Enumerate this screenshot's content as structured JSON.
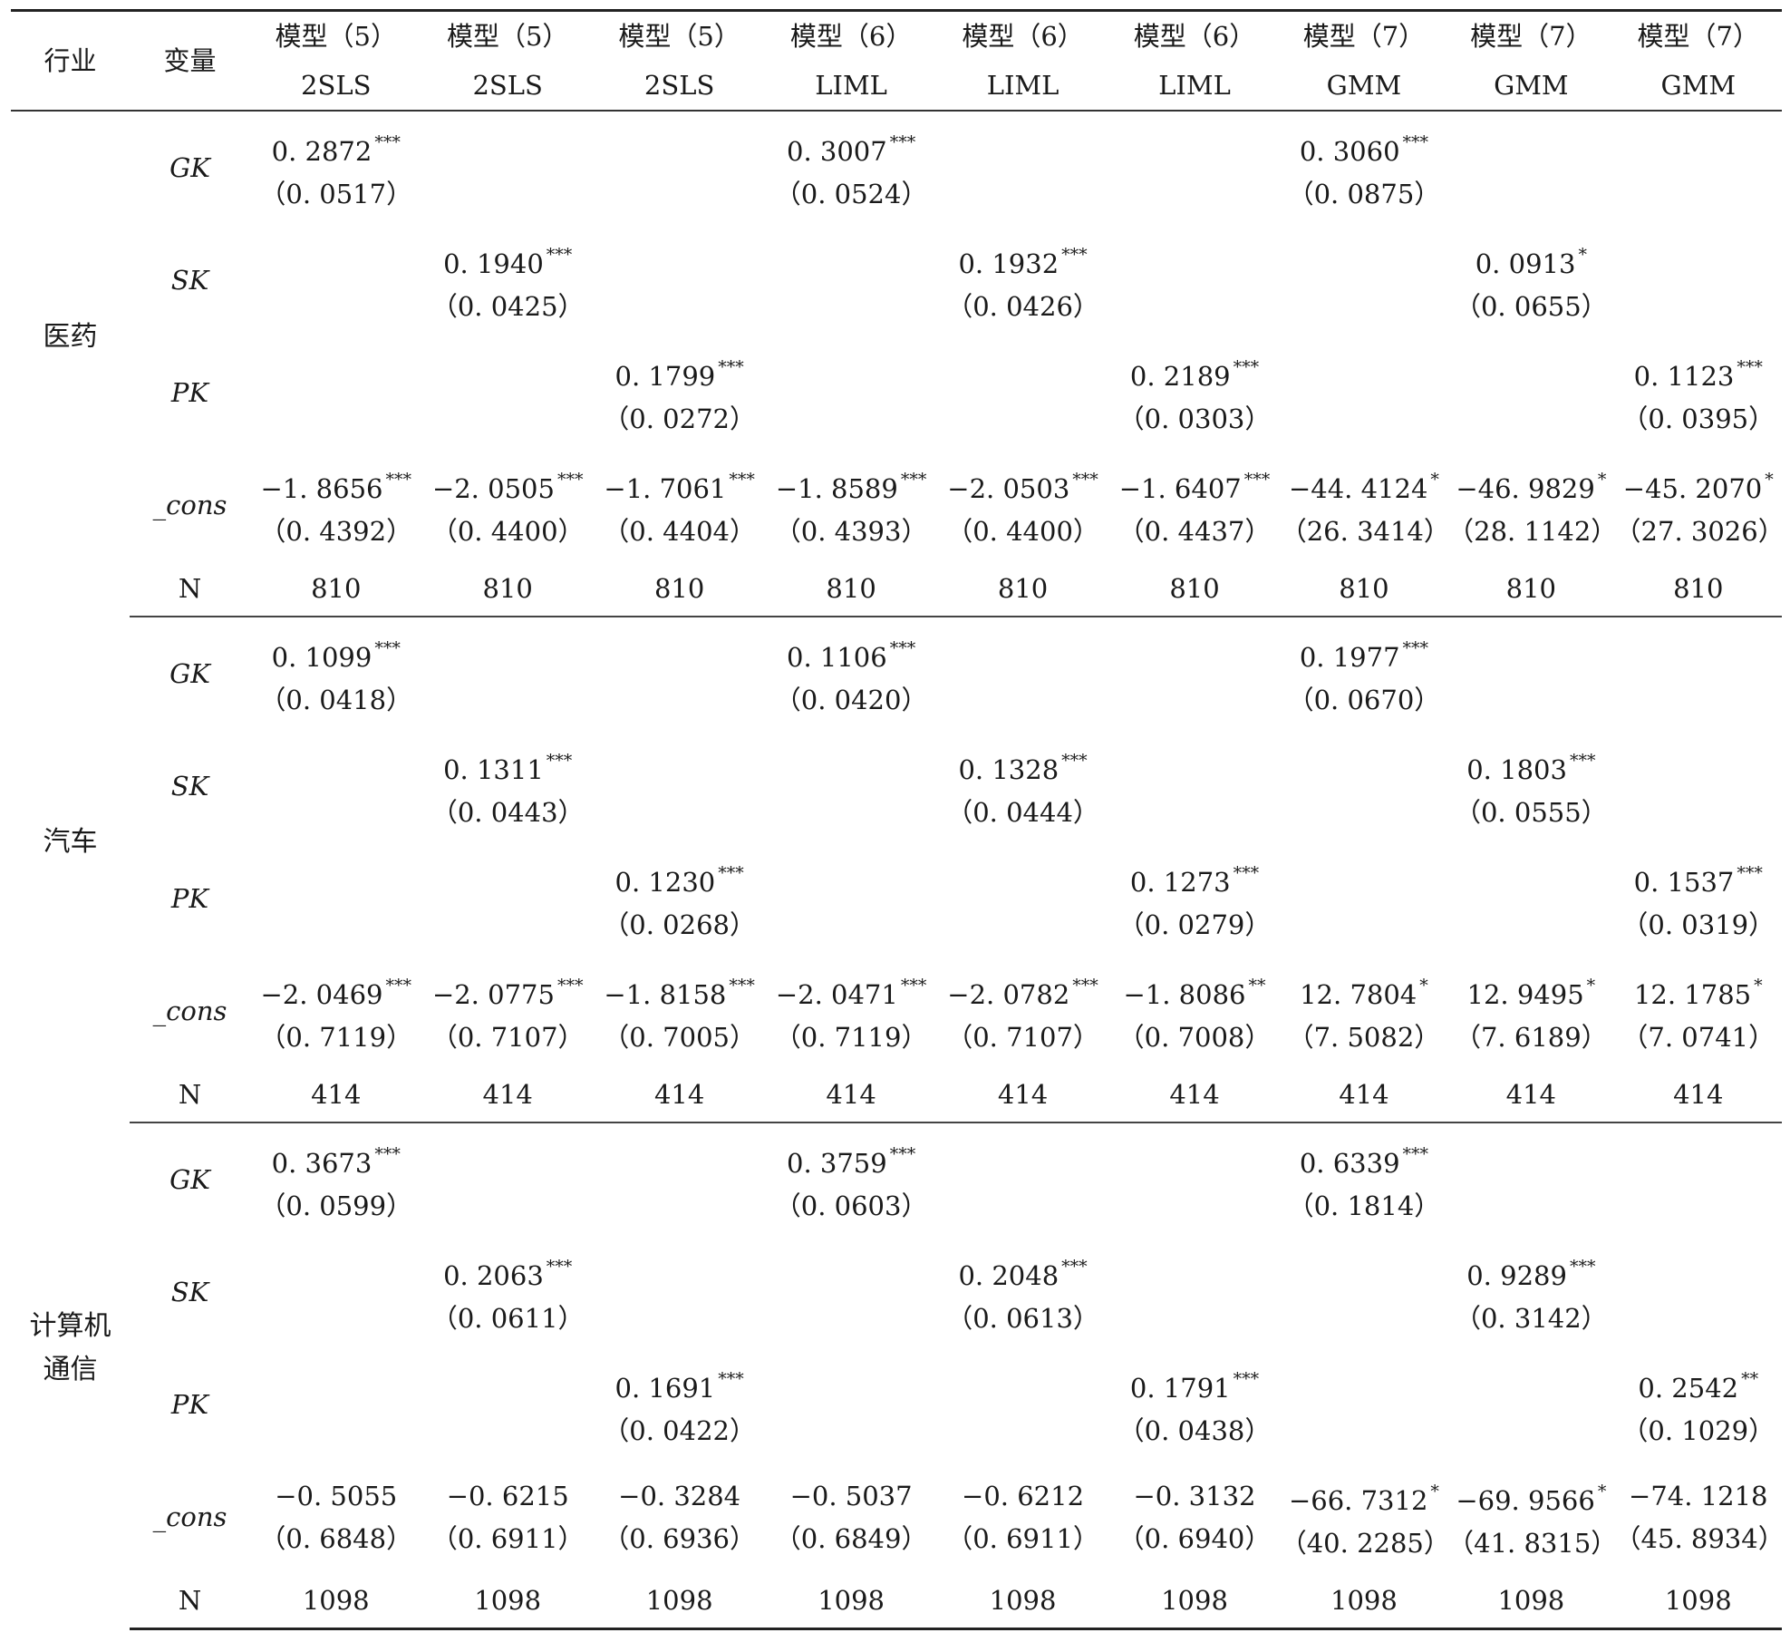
{
  "headers": {
    "industry": "行业",
    "variable": "变量",
    "models": [
      {
        "name": "模型（5）",
        "method": "2SLS"
      },
      {
        "name": "模型（5）",
        "method": "2SLS"
      },
      {
        "name": "模型（5）",
        "method": "2SLS"
      },
      {
        "name": "模型（6）",
        "method": "LIML"
      },
      {
        "name": "模型（6）",
        "method": "LIML"
      },
      {
        "name": "模型（6）",
        "method": "LIML"
      },
      {
        "name": "模型（7）",
        "method": "GMM"
      },
      {
        "name": "模型（7）",
        "method": "GMM"
      },
      {
        "name": "模型（7）",
        "method": "GMM"
      }
    ]
  },
  "groups": [
    {
      "industry_lines": [
        "医药"
      ],
      "rows": [
        {
          "var": "GK",
          "cells": [
            {
              "v": "0. 2872",
              "s": "***",
              "se": "（0. 0517）"
            },
            null,
            null,
            {
              "v": "0. 3007",
              "s": "***",
              "se": "（0. 0524）"
            },
            null,
            null,
            {
              "v": "0. 3060",
              "s": "***",
              "se": "（0. 0875）"
            },
            null,
            null
          ]
        },
        {
          "var": "SK",
          "cells": [
            null,
            {
              "v": "0. 1940",
              "s": "***",
              "se": "（0. 0425）"
            },
            null,
            null,
            {
              "v": "0. 1932",
              "s": "***",
              "se": "（0. 0426）"
            },
            null,
            null,
            {
              "v": "0. 0913",
              "s": "*",
              "se": "（0. 0655）"
            },
            null
          ]
        },
        {
          "var": "PK",
          "cells": [
            null,
            null,
            {
              "v": "0. 1799",
              "s": "***",
              "se": "（0. 0272）"
            },
            null,
            null,
            {
              "v": "0. 2189",
              "s": "***",
              "se": "（0. 0303）"
            },
            null,
            null,
            {
              "v": "0. 1123",
              "s": "***",
              "se": "（0. 0395）"
            }
          ]
        },
        {
          "var": "_cons",
          "cells": [
            {
              "v": "−1. 8656",
              "s": "***",
              "se": "（0. 4392）"
            },
            {
              "v": "−2. 0505",
              "s": "***",
              "se": "（0. 4400）"
            },
            {
              "v": "−1. 7061",
              "s": "***",
              "se": "（0. 4404）"
            },
            {
              "v": "−1. 8589",
              "s": "***",
              "se": "（0. 4393）"
            },
            {
              "v": "−2. 0503",
              "s": "***",
              "se": "（0. 4400）"
            },
            {
              "v": "−1. 6407",
              "s": "***",
              "se": "（0. 4437）"
            },
            {
              "v": "−44. 4124",
              "s": "*",
              "se": "（26. 3414）"
            },
            {
              "v": "−46. 9829",
              "s": "*",
              "se": "（28. 1142）"
            },
            {
              "v": "−45. 2070",
              "s": "*",
              "se": "（27. 3026）"
            }
          ]
        }
      ],
      "n_label": "N",
      "n": [
        "810",
        "810",
        "810",
        "810",
        "810",
        "810",
        "810",
        "810",
        "810"
      ]
    },
    {
      "industry_lines": [
        "汽车"
      ],
      "rows": [
        {
          "var": "GK",
          "cells": [
            {
              "v": "0. 1099",
              "s": "***",
              "se": "（0. 0418）"
            },
            null,
            null,
            {
              "v": "0. 1106",
              "s": "***",
              "se": "（0. 0420）"
            },
            null,
            null,
            {
              "v": "0. 1977",
              "s": "***",
              "se": "（0. 0670）"
            },
            null,
            null
          ]
        },
        {
          "var": "SK",
          "cells": [
            null,
            {
              "v": "0. 1311",
              "s": "***",
              "se": "（0. 0443）"
            },
            null,
            null,
            {
              "v": "0. 1328",
              "s": "***",
              "se": "（0. 0444）"
            },
            null,
            null,
            {
              "v": "0. 1803",
              "s": "***",
              "se": "（0. 0555）"
            },
            null
          ]
        },
        {
          "var": "PK",
          "cells": [
            null,
            null,
            {
              "v": "0. 1230",
              "s": "***",
              "se": "（0. 0268）"
            },
            null,
            null,
            {
              "v": "0. 1273",
              "s": "***",
              "se": "（0. 0279）"
            },
            null,
            null,
            {
              "v": "0. 1537",
              "s": "***",
              "se": "（0. 0319）"
            }
          ]
        },
        {
          "var": "_cons",
          "cells": [
            {
              "v": "−2. 0469",
              "s": "***",
              "se": "（0. 7119）"
            },
            {
              "v": "−2. 0775",
              "s": "***",
              "se": "（0. 7107）"
            },
            {
              "v": "−1. 8158",
              "s": "***",
              "se": "（0. 7005）"
            },
            {
              "v": "−2. 0471",
              "s": "***",
              "se": "（0. 7119）"
            },
            {
              "v": "−2. 0782",
              "s": "***",
              "se": "（0. 7107）"
            },
            {
              "v": "−1. 8086",
              "s": "**",
              "se": "（0. 7008）"
            },
            {
              "v": "12. 7804",
              "s": "*",
              "se": "（7. 5082）"
            },
            {
              "v": "12. 9495",
              "s": "*",
              "se": "（7. 6189）"
            },
            {
              "v": "12. 1785",
              "s": "*",
              "se": "（7. 0741）"
            }
          ]
        }
      ],
      "n_label": "N",
      "n": [
        "414",
        "414",
        "414",
        "414",
        "414",
        "414",
        "414",
        "414",
        "414"
      ]
    },
    {
      "industry_lines": [
        "计算机",
        "通信"
      ],
      "rows": [
        {
          "var": "GK",
          "cells": [
            {
              "v": "0. 3673",
              "s": "***",
              "se": "（0. 0599）"
            },
            null,
            null,
            {
              "v": "0. 3759",
              "s": "***",
              "se": "（0. 0603）"
            },
            null,
            null,
            {
              "v": "0. 6339",
              "s": "***",
              "se": "（0. 1814）"
            },
            null,
            null
          ]
        },
        {
          "var": "SK",
          "cells": [
            null,
            {
              "v": "0. 2063",
              "s": "***",
              "se": "（0. 0611）"
            },
            null,
            null,
            {
              "v": "0. 2048",
              "s": "***",
              "se": "（0. 0613）"
            },
            null,
            null,
            {
              "v": "0. 9289",
              "s": "***",
              "se": "（0. 3142）"
            },
            null
          ]
        },
        {
          "var": "PK",
          "cells": [
            null,
            null,
            {
              "v": "0. 1691",
              "s": "***",
              "se": "（0. 0422）"
            },
            null,
            null,
            {
              "v": "0. 1791",
              "s": "***",
              "se": "（0. 0438）"
            },
            null,
            null,
            {
              "v": "0. 2542",
              "s": "**",
              "se": "（0. 1029）"
            }
          ]
        },
        {
          "var": "_cons",
          "cells": [
            {
              "v": "−0. 5055",
              "s": "",
              "se": "（0. 6848）"
            },
            {
              "v": "−0. 6215",
              "s": "",
              "se": "（0. 6911）"
            },
            {
              "v": "−0. 3284",
              "s": "",
              "se": "（0. 6936）"
            },
            {
              "v": "−0. 5037",
              "s": "",
              "se": "（0. 6849）"
            },
            {
              "v": "−0. 6212",
              "s": "",
              "se": "（0. 6911）"
            },
            {
              "v": "−0. 3132",
              "s": "",
              "se": "（0. 6940）"
            },
            {
              "v": "−66. 7312",
              "s": "*",
              "se": "（40. 2285）"
            },
            {
              "v": "−69. 9566",
              "s": "*",
              "se": "（41. 8315）"
            },
            {
              "v": "−74. 1218",
              "s": "",
              "se": "（45. 8934）"
            }
          ]
        }
      ],
      "n_label": "N",
      "n": [
        "1098",
        "1098",
        "1098",
        "1098",
        "1098",
        "1098",
        "1098",
        "1098",
        "1098"
      ]
    }
  ]
}
